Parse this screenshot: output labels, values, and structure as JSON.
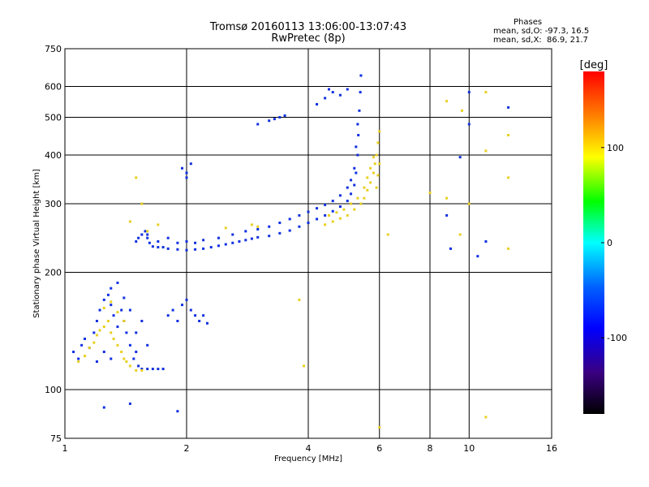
{
  "header": {
    "title_line1": "Tromsø 20160113 13:06:00-13:07:43",
    "title_line2": "RwPretec (8p)"
  },
  "stats": {
    "heading": "Phases",
    "line_o": "mean, sd,O: -97.3, 16.5",
    "line_x": "mean, sd,X:  86.9, 21.7"
  },
  "chart_data": {
    "type": "scatter",
    "title": "Tromsø 20160113 13:06:00-13:07:43",
    "subtitle": "RwPretec (8p)",
    "xlabel": "Frequency [MHz]",
    "ylabel": "Stationary phase Virtual Height [km]",
    "x_scale": "log",
    "y_scale": "log",
    "xlim": [
      1,
      16
    ],
    "ylim": [
      75,
      750
    ],
    "x_ticks": [
      1,
      2,
      4,
      6,
      8,
      10,
      16
    ],
    "x_tick_labels": [
      "1",
      "2",
      "4",
      "6",
      "8",
      "10",
      "16"
    ],
    "y_ticks": [
      75,
      100,
      200,
      300,
      400,
      500,
      600,
      750
    ],
    "y_tick_labels": [
      "75",
      "100",
      "200",
      "300",
      "400",
      "500",
      "600",
      "750"
    ],
    "grid": true,
    "colorbar": {
      "label": "[deg]",
      "range": [
        -180,
        180
      ],
      "ticks": [
        100,
        0,
        -100
      ],
      "tick_labels": [
        "100",
        "0",
        "-100"
      ],
      "colors": [
        "#000000",
        "#3a0080",
        "#0000ff",
        "#0060ff",
        "#00ffff",
        "#00ff00",
        "#ffff00",
        "#ff8000",
        "#ff0000"
      ]
    },
    "series": [
      {
        "name": "mean, sd,O: -97.3, 16.5",
        "phase_mean": -97.3,
        "color": "#1030e0",
        "points": [
          [
            1.05,
            125
          ],
          [
            1.08,
            120
          ],
          [
            1.1,
            130
          ],
          [
            1.12,
            135
          ],
          [
            1.15,
            128
          ],
          [
            1.18,
            140
          ],
          [
            1.2,
            150
          ],
          [
            1.22,
            160
          ],
          [
            1.25,
            170
          ],
          [
            1.28,
            175
          ],
          [
            1.3,
            165
          ],
          [
            1.32,
            155
          ],
          [
            1.35,
            145
          ],
          [
            1.38,
            160
          ],
          [
            1.4,
            150
          ],
          [
            1.42,
            140
          ],
          [
            1.45,
            130
          ],
          [
            1.48,
            120
          ],
          [
            1.5,
            125
          ],
          [
            1.52,
            115
          ],
          [
            1.55,
            113
          ],
          [
            1.6,
            113
          ],
          [
            1.65,
            113
          ],
          [
            1.7,
            113
          ],
          [
            1.75,
            113
          ],
          [
            1.3,
            182
          ],
          [
            1.35,
            188
          ],
          [
            1.4,
            172
          ],
          [
            1.45,
            160
          ],
          [
            1.5,
            140
          ],
          [
            1.55,
            150
          ],
          [
            1.6,
            130
          ],
          [
            1.3,
            120
          ],
          [
            1.25,
            125
          ],
          [
            1.2,
            118
          ],
          [
            1.8,
            155
          ],
          [
            1.85,
            160
          ],
          [
            1.9,
            150
          ],
          [
            1.95,
            165
          ],
          [
            2.0,
            170
          ],
          [
            2.05,
            160
          ],
          [
            2.1,
            155
          ],
          [
            2.15,
            150
          ],
          [
            2.2,
            155
          ],
          [
            2.25,
            148
          ],
          [
            1.5,
            240
          ],
          [
            1.52,
            245
          ],
          [
            1.55,
            250
          ],
          [
            1.58,
            255
          ],
          [
            1.6,
            245
          ],
          [
            1.62,
            238
          ],
          [
            1.65,
            233
          ],
          [
            1.7,
            232
          ],
          [
            1.75,
            232
          ],
          [
            1.8,
            230
          ],
          [
            1.9,
            229
          ],
          [
            2.0,
            228
          ],
          [
            2.1,
            229
          ],
          [
            2.2,
            230
          ],
          [
            2.3,
            232
          ],
          [
            2.4,
            234
          ],
          [
            2.5,
            236
          ],
          [
            2.6,
            238
          ],
          [
            2.7,
            240
          ],
          [
            2.8,
            242
          ],
          [
            2.9,
            244
          ],
          [
            3.0,
            246
          ],
          [
            3.2,
            248
          ],
          [
            3.4,
            252
          ],
          [
            3.6,
            256
          ],
          [
            3.8,
            262
          ],
          [
            4.0,
            268
          ],
          [
            4.2,
            274
          ],
          [
            4.4,
            280
          ],
          [
            4.6,
            287
          ],
          [
            4.8,
            295
          ],
          [
            5.0,
            305
          ],
          [
            5.1,
            318
          ],
          [
            5.2,
            335
          ],
          [
            5.25,
            360
          ],
          [
            5.3,
            400
          ],
          [
            5.32,
            450
          ],
          [
            5.35,
            520
          ],
          [
            5.38,
            580
          ],
          [
            5.4,
            640
          ],
          [
            1.6,
            250
          ],
          [
            1.7,
            240
          ],
          [
            1.8,
            245
          ],
          [
            1.9,
            238
          ],
          [
            2.0,
            240
          ],
          [
            2.1,
            238
          ],
          [
            2.2,
            242
          ],
          [
            2.4,
            245
          ],
          [
            2.6,
            250
          ],
          [
            2.8,
            255
          ],
          [
            3.0,
            258
          ],
          [
            3.2,
            262
          ],
          [
            3.4,
            268
          ],
          [
            3.6,
            274
          ],
          [
            3.8,
            280
          ],
          [
            4.0,
            286
          ],
          [
            4.2,
            292
          ],
          [
            4.4,
            298
          ],
          [
            4.6,
            305
          ],
          [
            4.8,
            315
          ],
          [
            5.0,
            330
          ],
          [
            5.1,
            345
          ],
          [
            5.2,
            370
          ],
          [
            5.25,
            420
          ],
          [
            5.3,
            480
          ],
          [
            2.0,
            360
          ],
          [
            2.05,
            380
          ],
          [
            1.95,
            370
          ],
          [
            2.0,
            350
          ],
          [
            3.0,
            480
          ],
          [
            3.2,
            490
          ],
          [
            3.4,
            500
          ],
          [
            3.5,
            505
          ],
          [
            3.3,
            495
          ],
          [
            4.2,
            540
          ],
          [
            4.4,
            560
          ],
          [
            4.6,
            580
          ],
          [
            4.8,
            570
          ],
          [
            4.5,
            590
          ],
          [
            5.0,
            590
          ],
          [
            10.0,
            580
          ],
          [
            10.0,
            480
          ],
          [
            12.5,
            530
          ],
          [
            9.5,
            395
          ],
          [
            8.8,
            280
          ],
          [
            10.5,
            220
          ],
          [
            11.0,
            240
          ],
          [
            9.0,
            230
          ],
          [
            1.25,
            90
          ],
          [
            1.45,
            92
          ],
          [
            1.9,
            88
          ]
        ]
      },
      {
        "name": "mean, sd,X:  86.9, 21.7",
        "phase_mean": 86.9,
        "color": "#e8d020",
        "points": [
          [
            1.08,
            118
          ],
          [
            1.12,
            122
          ],
          [
            1.15,
            128
          ],
          [
            1.18,
            132
          ],
          [
            1.2,
            138
          ],
          [
            1.22,
            142
          ],
          [
            1.25,
            145
          ],
          [
            1.28,
            150
          ],
          [
            1.3,
            140
          ],
          [
            1.32,
            135
          ],
          [
            1.35,
            130
          ],
          [
            1.38,
            125
          ],
          [
            1.4,
            120
          ],
          [
            1.42,
            118
          ],
          [
            1.45,
            115
          ],
          [
            1.5,
            112
          ],
          [
            1.55,
            112
          ],
          [
            1.25,
            162
          ],
          [
            1.3,
            168
          ],
          [
            1.35,
            158
          ],
          [
            1.4,
            150
          ],
          [
            4.4,
            265
          ],
          [
            4.6,
            270
          ],
          [
            4.8,
            275
          ],
          [
            5.0,
            280
          ],
          [
            5.2,
            290
          ],
          [
            5.4,
            300
          ],
          [
            5.5,
            310
          ],
          [
            5.6,
            325
          ],
          [
            5.7,
            340
          ],
          [
            5.8,
            360
          ],
          [
            5.85,
            380
          ],
          [
            5.9,
            400
          ],
          [
            5.95,
            430
          ],
          [
            6.0,
            460
          ],
          [
            4.5,
            280
          ],
          [
            4.7,
            285
          ],
          [
            4.9,
            290
          ],
          [
            5.1,
            300
          ],
          [
            5.3,
            310
          ],
          [
            5.5,
            330
          ],
          [
            5.6,
            350
          ],
          [
            5.7,
            370
          ],
          [
            5.8,
            395
          ],
          [
            5.9,
            330
          ],
          [
            5.95,
            355
          ],
          [
            6.0,
            380
          ],
          [
            1.5,
            350
          ],
          [
            1.55,
            300
          ],
          [
            1.45,
            270
          ],
          [
            1.6,
            255
          ],
          [
            1.7,
            265
          ],
          [
            2.5,
            260
          ],
          [
            2.9,
            265
          ],
          [
            3.0,
            262
          ],
          [
            8.0,
            320
          ],
          [
            8.8,
            310
          ],
          [
            8.8,
            550
          ],
          [
            9.6,
            520
          ],
          [
            11.0,
            580
          ],
          [
            12.5,
            450
          ],
          [
            12.5,
            350
          ],
          [
            11.0,
            410
          ],
          [
            10.0,
            300
          ],
          [
            9.5,
            250
          ],
          [
            12.5,
            230
          ],
          [
            11.0,
            85
          ],
          [
            6.3,
            250
          ],
          [
            3.8,
            170
          ],
          [
            3.9,
            115
          ],
          [
            6.0,
            80
          ]
        ]
      }
    ]
  }
}
